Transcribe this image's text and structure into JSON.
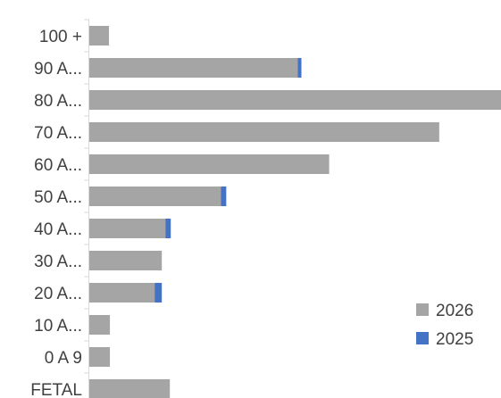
{
  "chart_data": {
    "type": "bar",
    "orientation": "horizontal",
    "stacked": true,
    "title": "",
    "xlabel": "",
    "ylabel": "",
    "grid": false,
    "legend_position": "bottom-right",
    "categories": [
      "100 +",
      "90 A...",
      "80 A...",
      "70 A...",
      "60 A...",
      "50 A...",
      "40 A...",
      "30 A...",
      "20 A...",
      "10 A...",
      "0 A 9",
      "FETAL"
    ],
    "series": [
      {
        "name": "2026",
        "color": "#a5a5a5",
        "values": [
          22,
          233,
          460,
          391,
          268,
          147,
          85,
          81,
          73,
          23,
          23,
          90
        ]
      },
      {
        "name": "2025",
        "color": "#4472c4",
        "values": [
          0,
          4,
          0,
          0,
          0,
          6,
          6,
          0,
          8,
          0,
          0,
          0
        ]
      }
    ],
    "xlim": [
      0,
      460
    ]
  }
}
